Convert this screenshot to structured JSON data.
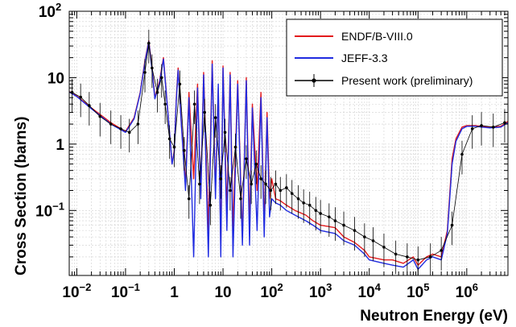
{
  "chart_data": {
    "type": "line",
    "title": "",
    "xlabel": "Neutron Energy (eV)",
    "ylabel": "Cross Section (barns)",
    "x_scale": "log",
    "y_scale": "log",
    "xlim": [
      0.007,
      7000000
    ],
    "ylim": [
      0.0105,
      100
    ],
    "grid": true,
    "legend_position": "top-right",
    "x_ticks": [
      {
        "value": 0.01,
        "base": "10",
        "exp": "−2"
      },
      {
        "value": 0.1,
        "base": "10",
        "exp": "−1"
      },
      {
        "value": 1,
        "base": "1",
        "exp": ""
      },
      {
        "value": 10,
        "base": "10",
        "exp": ""
      },
      {
        "value": 100,
        "base": "10",
        "exp": "2"
      },
      {
        "value": 1000,
        "base": "10",
        "exp": "3"
      },
      {
        "value": 10000,
        "base": "10",
        "exp": "4"
      },
      {
        "value": 100000,
        "base": "10",
        "exp": "5"
      },
      {
        "value": 1000000,
        "base": "10",
        "exp": "6"
      }
    ],
    "y_ticks": [
      {
        "value": 0.1,
        "base": "10",
        "exp": "−1"
      },
      {
        "value": 1,
        "base": "1",
        "exp": ""
      },
      {
        "value": 10,
        "base": "10",
        "exp": ""
      },
      {
        "value": 100,
        "base": "10",
        "exp": "2"
      }
    ],
    "series": [
      {
        "name": "ENDF/B-VIII.0",
        "color": "#e31a1c",
        "style": "line",
        "x": [
          0.007,
          0.01,
          0.02,
          0.05,
          0.1,
          0.15,
          0.2,
          0.25,
          0.3,
          0.35,
          0.4,
          0.5,
          0.6,
          0.7,
          0.8,
          0.9,
          1.0,
          1.1,
          1.2,
          1.4,
          1.7,
          2.0,
          2.5,
          3.0,
          3.5,
          4.0,
          5.0,
          6.0,
          7.0,
          8.0,
          9.0,
          10,
          12,
          14,
          16,
          20,
          25,
          30,
          35,
          40,
          50,
          60,
          70,
          80,
          90,
          100,
          120,
          150,
          200,
          300,
          500,
          700,
          1000,
          2000,
          3000,
          5000,
          8000,
          10000,
          20000,
          30000,
          50000,
          80000,
          100000,
          150000,
          200000,
          300000,
          400000,
          500000,
          600000,
          800000,
          1000000,
          1500000,
          2000000,
          3000000,
          5000000,
          7000000
        ],
        "y": [
          6.2,
          5.3,
          3.5,
          2.1,
          1.55,
          2.5,
          6,
          18,
          36,
          14,
          5,
          9,
          20,
          5,
          1.5,
          0.5,
          0.8,
          5,
          14,
          2,
          0.25,
          6,
          0.3,
          8,
          0.18,
          12,
          0.05,
          18,
          0.2,
          7,
          0.03,
          15,
          0.1,
          12,
          0.05,
          9,
          0.04,
          10,
          0.06,
          4,
          0.2,
          6,
          0.06,
          3,
          0.15,
          0.3,
          0.15,
          0.14,
          0.12,
          0.1,
          0.085,
          0.07,
          0.06,
          0.055,
          0.04,
          0.033,
          0.025,
          0.02,
          0.018,
          0.018,
          0.016,
          0.02,
          0.015,
          0.02,
          0.022,
          0.02,
          0.05,
          0.6,
          1.2,
          1.8,
          1.9,
          1.9,
          1.85,
          1.8,
          1.85,
          2.2
        ]
      },
      {
        "name": "JEFF-3.3",
        "color": "#1f2be0",
        "style": "line",
        "x": [
          0.007,
          0.01,
          0.02,
          0.05,
          0.1,
          0.15,
          0.2,
          0.25,
          0.3,
          0.35,
          0.4,
          0.5,
          0.6,
          0.7,
          0.8,
          0.9,
          1.0,
          1.1,
          1.2,
          1.4,
          1.7,
          2.0,
          2.5,
          3.0,
          3.5,
          4.0,
          5.0,
          6.0,
          7.0,
          8.0,
          9.0,
          10,
          12,
          14,
          16,
          20,
          25,
          30,
          35,
          40,
          50,
          60,
          70,
          80,
          90,
          100,
          120,
          150,
          200,
          300,
          500,
          700,
          1000,
          2000,
          3000,
          5000,
          8000,
          10000,
          20000,
          30000,
          50000,
          80000,
          100000,
          150000,
          200000,
          300000,
          400000,
          500000,
          600000,
          800000,
          1000000,
          1500000,
          2000000,
          3000000,
          5000000,
          7000000
        ],
        "y": [
          6.1,
          5.2,
          3.4,
          2.0,
          1.5,
          2.4,
          5.8,
          17,
          35,
          13,
          4.8,
          8.5,
          19,
          4.8,
          1.5,
          0.5,
          0.75,
          4.5,
          13,
          1.9,
          0.2,
          5,
          0.02,
          7,
          0.15,
          11,
          0.02,
          16,
          0.15,
          8,
          0.02,
          14,
          0.05,
          11,
          0.02,
          8,
          0.03,
          9,
          0.03,
          3.5,
          0.05,
          5,
          0.04,
          2.5,
          0.08,
          0.15,
          0.13,
          0.12,
          0.1,
          0.085,
          0.07,
          0.06,
          0.05,
          0.045,
          0.035,
          0.03,
          0.022,
          0.018,
          0.016,
          0.015,
          0.014,
          0.018,
          0.013,
          0.018,
          0.02,
          0.018,
          0.045,
          0.5,
          1.1,
          1.7,
          1.85,
          1.85,
          1.8,
          1.75,
          1.8,
          2.1
        ]
      },
      {
        "name": "Present work (preliminary)",
        "color": "#000000",
        "style": "points-with-errors",
        "x": [
          0.008,
          0.012,
          0.018,
          0.03,
          0.05,
          0.08,
          0.12,
          0.18,
          0.25,
          0.3,
          0.35,
          0.45,
          0.55,
          0.65,
          0.8,
          1.0,
          1.3,
          1.6,
          2.0,
          2.6,
          3.3,
          4.2,
          5.5,
          7,
          9,
          11,
          14,
          18,
          23,
          30,
          38,
          48,
          60,
          75,
          95,
          120,
          150,
          200,
          260,
          350,
          450,
          600,
          800,
          1000,
          1500,
          2000,
          3000,
          5000,
          8000,
          12000,
          20000,
          35000,
          60000,
          100000,
          180000,
          300000,
          500000,
          800000,
          1300000,
          2000000,
          3500000,
          6000000
        ],
        "y": [
          6.0,
          5.1,
          3.8,
          2.6,
          2.0,
          1.7,
          1.5,
          2.0,
          12,
          33,
          14,
          6,
          10,
          4,
          1.2,
          0.9,
          8,
          0.8,
          0.15,
          4,
          0.25,
          3,
          0.12,
          2.5,
          0.3,
          1.5,
          0.2,
          0.9,
          0.15,
          0.6,
          0.25,
          0.5,
          0.3,
          0.25,
          0.2,
          0.25,
          0.2,
          0.22,
          0.18,
          0.15,
          0.13,
          0.12,
          0.1,
          0.09,
          0.08,
          0.07,
          0.06,
          0.05,
          0.04,
          0.035,
          0.028,
          0.022,
          0.02,
          0.018,
          0.02,
          0.025,
          0.06,
          0.7,
          1.7,
          1.9,
          1.8,
          2.1
        ]
      }
    ]
  }
}
